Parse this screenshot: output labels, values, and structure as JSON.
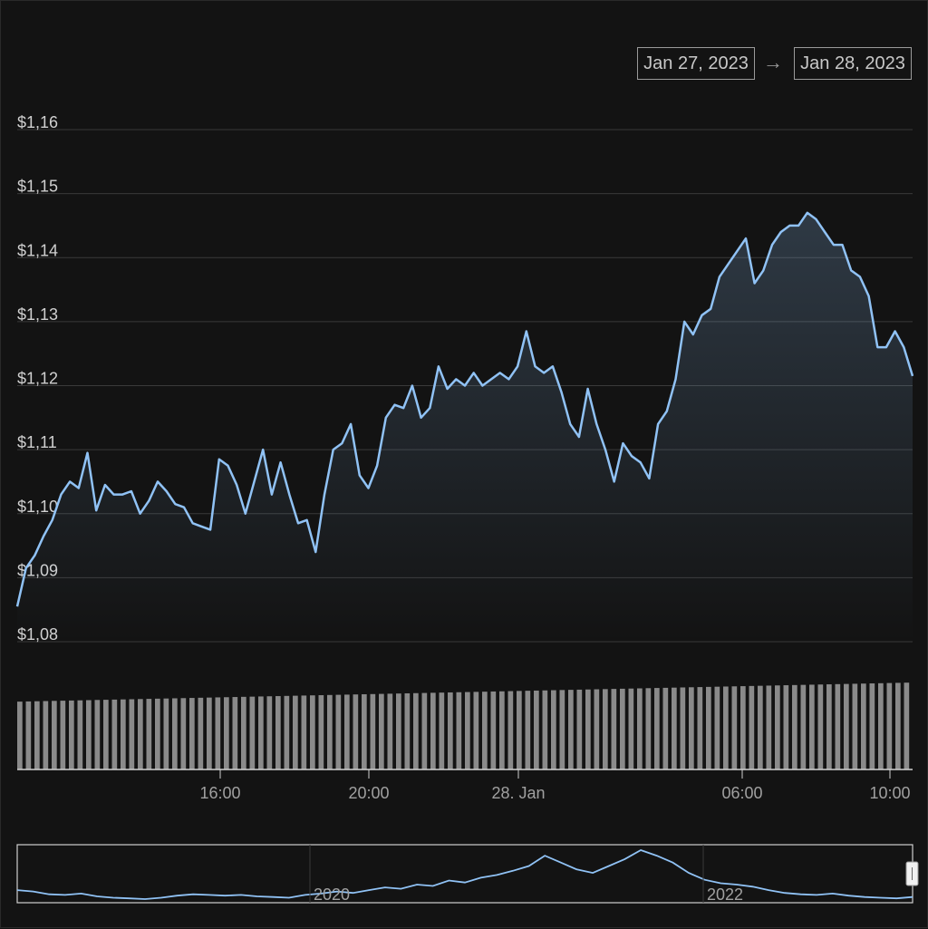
{
  "range_selector": {
    "from": "Jan 27, 2023",
    "arrow": "→",
    "to": "Jan 28, 2023"
  },
  "colors": {
    "background": "#131313",
    "line": "#90c2f5",
    "grid": "#3a3a3a",
    "volume": "#8a8a8a",
    "text": "#d0d0d0"
  },
  "chart_data": {
    "type": "line",
    "ylim": [
      1.08,
      1.16
    ],
    "y_ticks": [
      "$1,08",
      "$1,09",
      "$1,10",
      "$1,11",
      "$1,12",
      "$1,13",
      "$1,14",
      "$1,15",
      "$1,16"
    ],
    "x_ticks": [
      "16:00",
      "20:00",
      "28. Jan",
      "06:00",
      "10:00"
    ],
    "series": [
      {
        "values": [
          1.0855,
          1.0915,
          1.0935,
          1.0965,
          1.099,
          1.103,
          1.105,
          1.104,
          1.1095,
          1.1005,
          1.1045,
          1.103,
          1.103,
          1.1035,
          1.1,
          1.102,
          1.105,
          1.1035,
          1.1015,
          1.101,
          1.0985,
          1.098,
          1.0975,
          1.1085,
          1.1075,
          1.1045,
          1.1,
          1.105,
          1.11,
          1.103,
          1.108,
          1.103,
          1.0985,
          1.099,
          1.094,
          1.103,
          1.11,
          1.111,
          1.114,
          1.106,
          1.104,
          1.1075,
          1.115,
          1.117,
          1.1165,
          1.12,
          1.115,
          1.1165,
          1.123,
          1.1195,
          1.121,
          1.12,
          1.122,
          1.12,
          1.121,
          1.122,
          1.121,
          1.123,
          1.1285,
          1.123,
          1.122,
          1.123,
          1.119,
          1.114,
          1.112,
          1.1195,
          1.114,
          1.11,
          1.105,
          1.111,
          1.109,
          1.108,
          1.1055,
          1.114,
          1.116,
          1.121,
          1.13,
          1.128,
          1.131,
          1.132,
          1.137,
          1.139,
          1.141,
          1.143,
          1.136,
          1.138,
          1.142,
          1.144,
          1.145,
          1.145,
          1.147,
          1.146,
          1.144,
          1.142,
          1.142,
          1.138,
          1.137,
          1.134,
          1.126,
          1.126,
          1.1285,
          1.126,
          1.1215
        ]
      }
    ],
    "volume": [
      1,
      1,
      1,
      1,
      1,
      1,
      1,
      1,
      1,
      1,
      1,
      1,
      1,
      1,
      1,
      1,
      1,
      1,
      1,
      1,
      1,
      1,
      1,
      1,
      1,
      1,
      1,
      1,
      1,
      1,
      1,
      1,
      1,
      1,
      1,
      1,
      1,
      1,
      1,
      1,
      1,
      1,
      1,
      1,
      1,
      1,
      1,
      1,
      1,
      1,
      1,
      1,
      1,
      1,
      1,
      1,
      1,
      1,
      1,
      1,
      1,
      1,
      1,
      1,
      1,
      1,
      1,
      1,
      1,
      1,
      1,
      1,
      1,
      1,
      1,
      1,
      1,
      1,
      1,
      1,
      1,
      1,
      1,
      1,
      1,
      1,
      1,
      1,
      1,
      1,
      1,
      1,
      1,
      1,
      1,
      1,
      1,
      1,
      1,
      1,
      1,
      1,
      1,
      1
    ],
    "navigator": {
      "x_ticks": [
        "2020",
        "2022"
      ],
      "values": [
        1.09,
        1.088,
        1.084,
        1.083,
        1.085,
        1.081,
        1.079,
        1.078,
        1.077,
        1.079,
        1.082,
        1.084,
        1.083,
        1.082,
        1.083,
        1.081,
        1.08,
        1.079,
        1.083,
        1.085,
        1.088,
        1.086,
        1.09,
        1.094,
        1.092,
        1.098,
        1.096,
        1.104,
        1.101,
        1.108,
        1.112,
        1.118,
        1.125,
        1.14,
        1.13,
        1.12,
        1.115,
        1.125,
        1.135,
        1.148,
        1.14,
        1.13,
        1.115,
        1.105,
        1.1,
        1.098,
        1.095,
        1.09,
        1.086,
        1.084,
        1.083,
        1.085,
        1.082,
        1.08,
        1.079,
        1.078,
        1.08
      ]
    }
  }
}
